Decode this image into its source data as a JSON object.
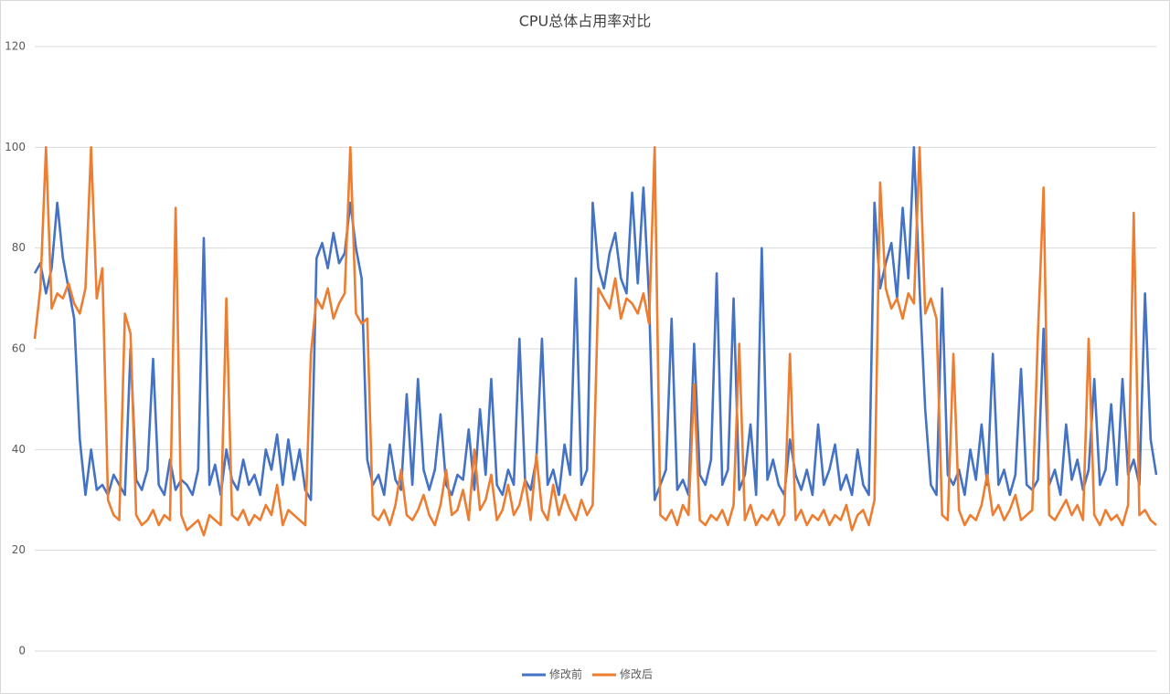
{
  "chart_data": {
    "type": "line",
    "title": "CPU总体占用率对比",
    "ylim": [
      0,
      120
    ],
    "yticks": [
      0,
      20,
      40,
      60,
      80,
      100,
      120
    ],
    "grid": true,
    "legend": "bottom",
    "series": [
      {
        "name": "修改前",
        "color": "#4472c4",
        "values": [
          75,
          77,
          71,
          76,
          89,
          78,
          72,
          66,
          42,
          31,
          40,
          32,
          33,
          31,
          35,
          33,
          31,
          60,
          34,
          32,
          36,
          58,
          33,
          31,
          38,
          32,
          34,
          33,
          31,
          36,
          82,
          33,
          37,
          31,
          40,
          34,
          32,
          38,
          33,
          35,
          31,
          40,
          36,
          43,
          33,
          42,
          34,
          40,
          32,
          30,
          78,
          81,
          76,
          83,
          77,
          79,
          89,
          80,
          74,
          38,
          33,
          35,
          31,
          41,
          34,
          32,
          51,
          33,
          54,
          36,
          32,
          36,
          47,
          33,
          31,
          35,
          34,
          44,
          32,
          48,
          35,
          54,
          33,
          31,
          36,
          33,
          62,
          34,
          32,
          38,
          62,
          33,
          36,
          31,
          41,
          35,
          74,
          33,
          36,
          89,
          76,
          72,
          79,
          83,
          74,
          71,
          91,
          73,
          92,
          70,
          30,
          33,
          36,
          66,
          32,
          34,
          31,
          61,
          35,
          33,
          38,
          75,
          33,
          36,
          70,
          32,
          35,
          45,
          31,
          80,
          34,
          38,
          33,
          31,
          42,
          35,
          32,
          36,
          31,
          45,
          33,
          36,
          41,
          32,
          35,
          31,
          40,
          33,
          31,
          89,
          72,
          77,
          81,
          70,
          88,
          74,
          100,
          72,
          48,
          33,
          31,
          72,
          35,
          33,
          36,
          31,
          40,
          34,
          45,
          33,
          59,
          33,
          36,
          31,
          35,
          56,
          33,
          32,
          34,
          64,
          33,
          36,
          31,
          45,
          34,
          38,
          32,
          36,
          54,
          33,
          36,
          49,
          33,
          54,
          35,
          38,
          33,
          71,
          42,
          35
        ]
      },
      {
        "name": "修改后",
        "color": "#ed7d31",
        "values": [
          62,
          72,
          100,
          68,
          71,
          70,
          73,
          69,
          67,
          72,
          100,
          70,
          76,
          30,
          27,
          26,
          67,
          63,
          27,
          25,
          26,
          28,
          25,
          27,
          26,
          88,
          27,
          24,
          25,
          26,
          23,
          27,
          26,
          25,
          70,
          27,
          26,
          28,
          25,
          27,
          26,
          29,
          27,
          33,
          25,
          28,
          27,
          26,
          25,
          59,
          70,
          68,
          72,
          66,
          69,
          71,
          100,
          67,
          65,
          66,
          27,
          26,
          28,
          25,
          29,
          36,
          27,
          26,
          28,
          31,
          27,
          25,
          29,
          36,
          27,
          28,
          32,
          26,
          40,
          28,
          30,
          35,
          26,
          28,
          33,
          27,
          29,
          34,
          26,
          39,
          28,
          26,
          33,
          27,
          31,
          28,
          26,
          30,
          27,
          29,
          72,
          70,
          68,
          74,
          66,
          70,
          69,
          67,
          71,
          65,
          100,
          27,
          26,
          28,
          25,
          29,
          27,
          53,
          26,
          25,
          27,
          26,
          28,
          25,
          29,
          61,
          26,
          29,
          25,
          27,
          26,
          28,
          25,
          27,
          59,
          26,
          28,
          25,
          27,
          26,
          28,
          25,
          27,
          26,
          29,
          24,
          27,
          28,
          25,
          30,
          93,
          72,
          68,
          70,
          66,
          71,
          69,
          100,
          67,
          70,
          66,
          27,
          26,
          59,
          28,
          25,
          27,
          26,
          29,
          35,
          27,
          29,
          26,
          28,
          31,
          26,
          27,
          28,
          63,
          92,
          27,
          26,
          28,
          30,
          27,
          29,
          26,
          62,
          27,
          25,
          28,
          26,
          27,
          25,
          29,
          87,
          27,
          28,
          26,
          25
        ]
      }
    ]
  }
}
